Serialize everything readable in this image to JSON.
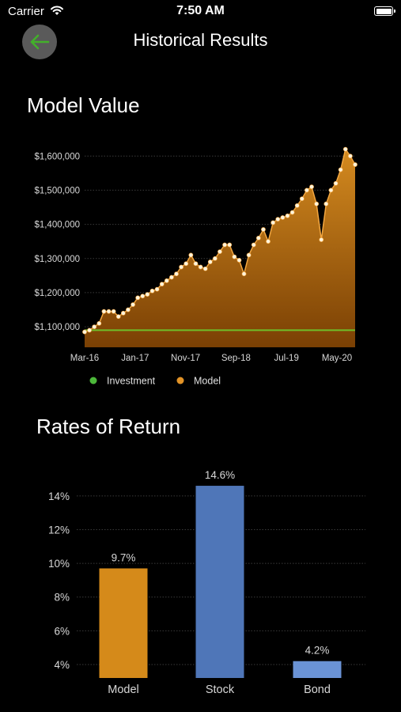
{
  "status": {
    "carrier": "Carrier",
    "time": "7:50 AM"
  },
  "nav": {
    "title": "Historical Results"
  },
  "model_value": {
    "title": "Model Value"
  },
  "rates": {
    "title": "Rates of Return"
  },
  "colors": {
    "model": "#d58a1a",
    "investment": "#5fb92a",
    "bond": "#6a93d6",
    "stock": "#4f76b8"
  },
  "chart_data": [
    {
      "type": "area",
      "title": "Model Value",
      "x_tick_labels": [
        "Mar-16",
        "Jan-17",
        "Nov-17",
        "Sep-18",
        "Jul-19",
        "May-20"
      ],
      "y_tick_labels": [
        "$1,100,000",
        "$1,200,000",
        "$1,300,000",
        "$1,400,000",
        "$1,500,000",
        "$1,600,000"
      ],
      "ylim": [
        1040000,
        1640000
      ],
      "legend": [
        "Investment",
        "Model"
      ],
      "legend_position": "bottom-left",
      "series": [
        {
          "name": "Investment",
          "values": [
            1090000,
            1090000
          ]
        },
        {
          "name": "Model",
          "values": [
            1085000,
            1090000,
            1100000,
            1110000,
            1145000,
            1145000,
            1145000,
            1130000,
            1140000,
            1150000,
            1165000,
            1185000,
            1190000,
            1195000,
            1205000,
            1210000,
            1225000,
            1235000,
            1245000,
            1255000,
            1275000,
            1285000,
            1310000,
            1285000,
            1275000,
            1270000,
            1290000,
            1300000,
            1320000,
            1340000,
            1340000,
            1305000,
            1295000,
            1255000,
            1310000,
            1340000,
            1360000,
            1385000,
            1350000,
            1405000,
            1415000,
            1420000,
            1425000,
            1435000,
            1455000,
            1475000,
            1500000,
            1510000,
            1460000,
            1355000,
            1460000,
            1500000,
            1520000,
            1560000,
            1620000,
            1600000,
            1575000
          ]
        }
      ]
    },
    {
      "type": "bar",
      "title": "Rates of Return",
      "categories": [
        "Model",
        "Stock",
        "Bond"
      ],
      "values": [
        9.7,
        14.6,
        4.2
      ],
      "data_labels": [
        "9.7%",
        "14.6%",
        "4.2%"
      ],
      "y_tick_labels": [
        "4%",
        "6%",
        "8%",
        "10%",
        "12%",
        "14%"
      ],
      "ylim": [
        3.2,
        15.4
      ]
    }
  ]
}
